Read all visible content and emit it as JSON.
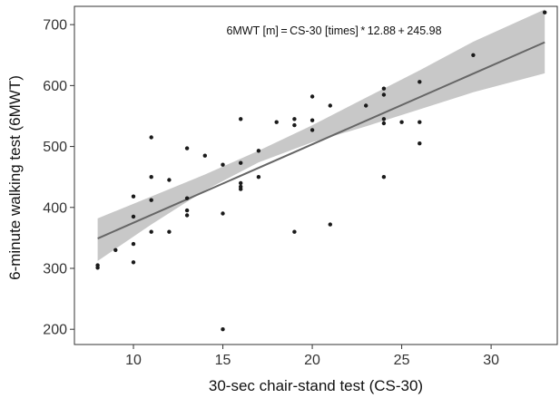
{
  "chart_data": {
    "type": "scatter",
    "xlabel": "30-sec chair-stand test (CS-30)",
    "ylabel": "6-minute walking test (6MWT)",
    "annotation": "6MWT [m] = CS-30 [times] * 12.88 + 245.98",
    "xlim": [
      6.7,
      33.7
    ],
    "ylim": [
      175,
      730
    ],
    "xticks": [
      10,
      15,
      20,
      25,
      30
    ],
    "yticks": [
      200,
      300,
      400,
      500,
      600,
      700
    ],
    "grid": false,
    "regression": {
      "slope": 12.88,
      "intercept": 245.98,
      "x_range": [
        8,
        33
      ],
      "ci_lower": [
        [
          8,
          312
        ],
        [
          11,
          372
        ],
        [
          14,
          428
        ],
        [
          17,
          474
        ],
        [
          20,
          507
        ],
        [
          23,
          533
        ],
        [
          26,
          561
        ],
        [
          29,
          589
        ],
        [
          33,
          620
        ]
      ],
      "ci_upper": [
        [
          8,
          382
        ],
        [
          11,
          418
        ],
        [
          14,
          454
        ],
        [
          17,
          493
        ],
        [
          20,
          535
        ],
        [
          23,
          580
        ],
        [
          26,
          625
        ],
        [
          29,
          672
        ],
        [
          33,
          725
        ]
      ]
    },
    "points": [
      {
        "x": 8,
        "y": 305
      },
      {
        "x": 8,
        "y": 301
      },
      {
        "x": 9,
        "y": 330
      },
      {
        "x": 10,
        "y": 418
      },
      {
        "x": 10,
        "y": 385
      },
      {
        "x": 10,
        "y": 340
      },
      {
        "x": 10,
        "y": 310
      },
      {
        "x": 11,
        "y": 515
      },
      {
        "x": 11,
        "y": 450
      },
      {
        "x": 11,
        "y": 412
      },
      {
        "x": 11,
        "y": 360
      },
      {
        "x": 12,
        "y": 445
      },
      {
        "x": 12,
        "y": 360
      },
      {
        "x": 13,
        "y": 497
      },
      {
        "x": 13,
        "y": 415
      },
      {
        "x": 13,
        "y": 395
      },
      {
        "x": 13,
        "y": 387
      },
      {
        "x": 14,
        "y": 485
      },
      {
        "x": 15,
        "y": 470
      },
      {
        "x": 15,
        "y": 390
      },
      {
        "x": 15,
        "y": 200
      },
      {
        "x": 16,
        "y": 545
      },
      {
        "x": 16,
        "y": 473
      },
      {
        "x": 16,
        "y": 440
      },
      {
        "x": 16,
        "y": 434
      },
      {
        "x": 16,
        "y": 430
      },
      {
        "x": 17,
        "y": 493
      },
      {
        "x": 17,
        "y": 450
      },
      {
        "x": 18,
        "y": 540
      },
      {
        "x": 19,
        "y": 545
      },
      {
        "x": 19,
        "y": 535
      },
      {
        "x": 19,
        "y": 360
      },
      {
        "x": 20,
        "y": 582
      },
      {
        "x": 20,
        "y": 543
      },
      {
        "x": 20,
        "y": 527
      },
      {
        "x": 21,
        "y": 567
      },
      {
        "x": 21,
        "y": 372
      },
      {
        "x": 23,
        "y": 567
      },
      {
        "x": 24,
        "y": 595
      },
      {
        "x": 24,
        "y": 585
      },
      {
        "x": 24,
        "y": 545
      },
      {
        "x": 24,
        "y": 538
      },
      {
        "x": 24,
        "y": 450
      },
      {
        "x": 25,
        "y": 540
      },
      {
        "x": 26,
        "y": 606
      },
      {
        "x": 26,
        "y": 540
      },
      {
        "x": 26,
        "y": 505
      },
      {
        "x": 29,
        "y": 650
      },
      {
        "x": 33,
        "y": 720
      }
    ]
  },
  "colors": {
    "points": "#1a1a1a",
    "line": "#666666",
    "band": "#c8c8c8",
    "axis": "#333333"
  }
}
